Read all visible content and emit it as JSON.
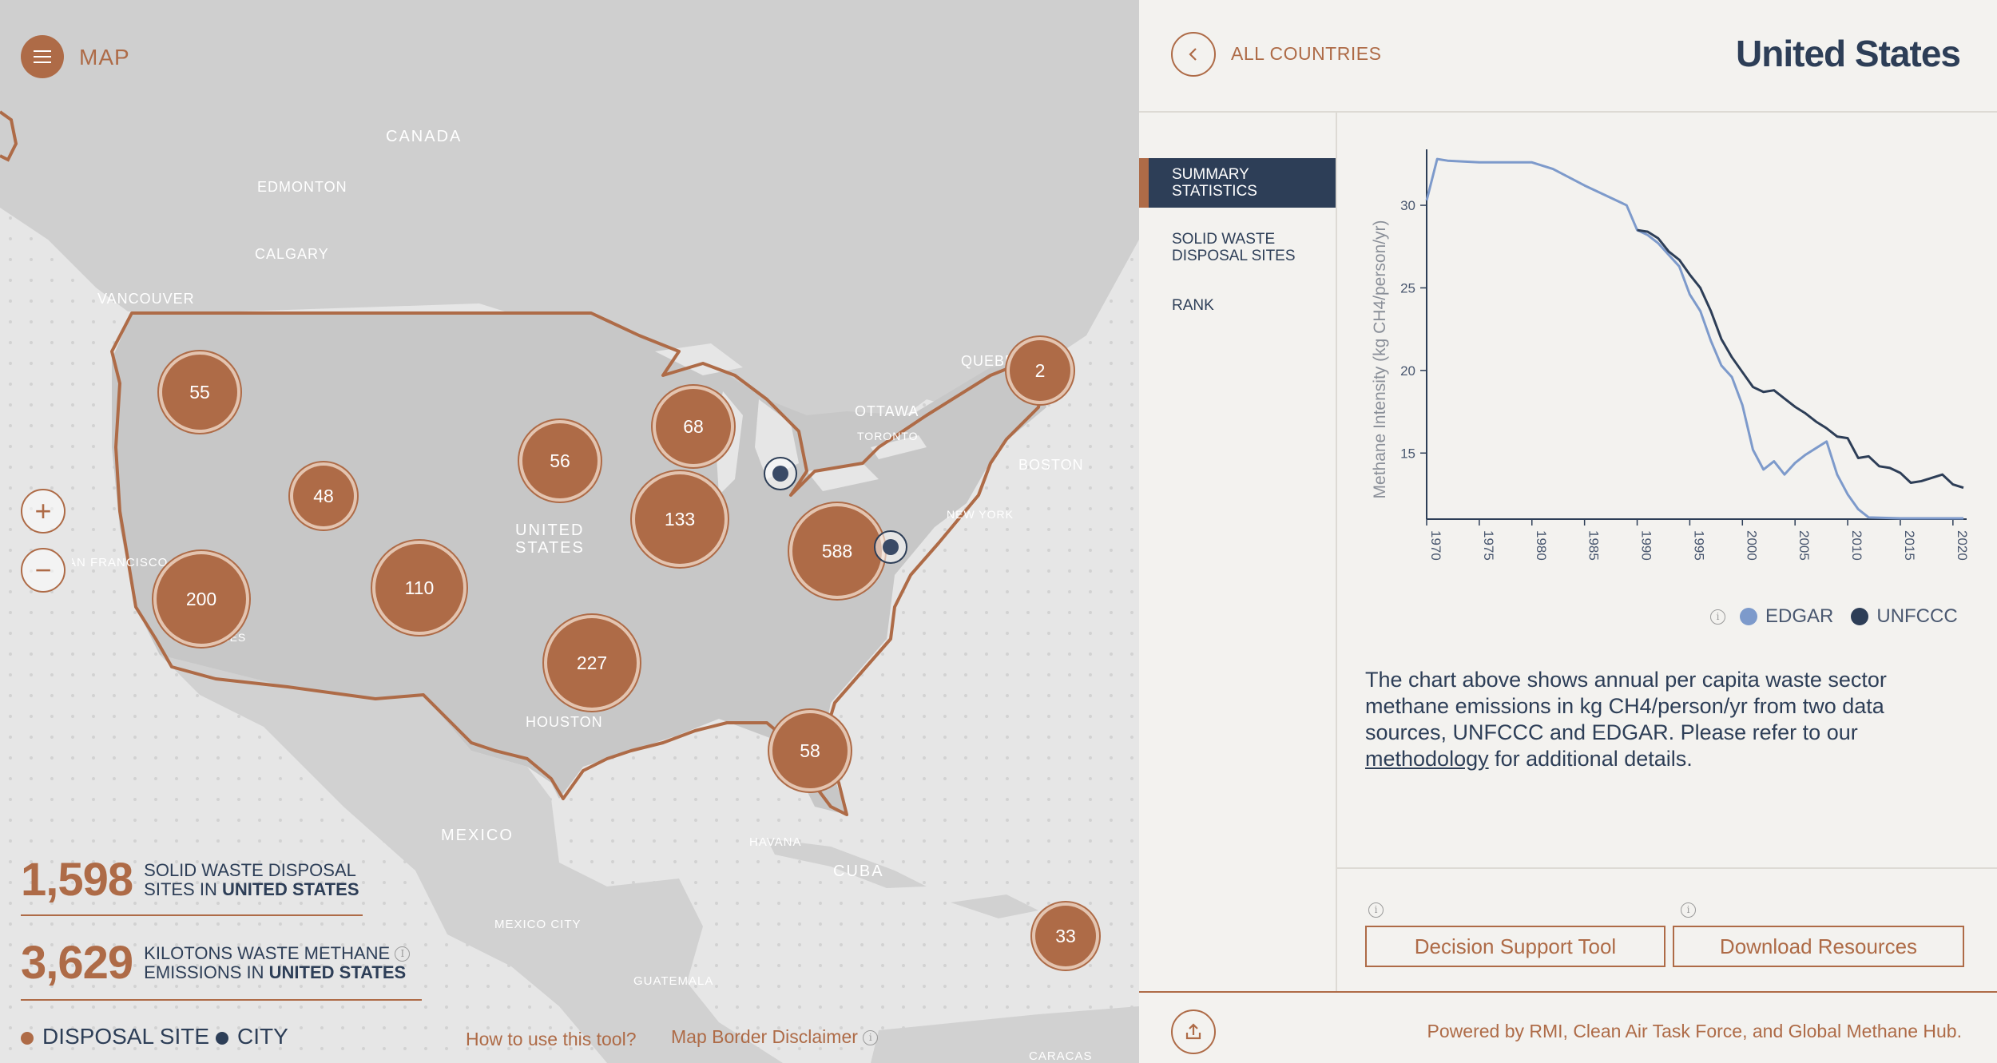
{
  "map": {
    "title": "MAP",
    "labels": {
      "canada": "CANADA",
      "edmonton": "EDMONTON",
      "calgary": "CALGARY",
      "vancouver": "VANCOUVER",
      "quebec": "QUEBEC",
      "ottawa": "OTTAWA",
      "toronto": "TORONTO",
      "boston": "BOSTON",
      "new_york": "NEW YORK",
      "united_states": "UNITED STATES",
      "san_francisco": "SAN FRANCISCO",
      "los_angeles": "LOS ANGELES",
      "houston": "HOUSTON",
      "mexico": "MEXICO",
      "mexico_city": "MEXICO CITY",
      "havana": "HAVANA",
      "cuba": "CUBA",
      "guatemala": "GUATEMALA",
      "caracas": "CARACAS"
    },
    "clusters": [
      "55",
      "48",
      "200",
      "110",
      "56",
      "68",
      "133",
      "227",
      "588",
      "58",
      "2",
      "33"
    ],
    "zoom_in": "+",
    "zoom_out": "−"
  },
  "stats": {
    "sites_value": "1,598",
    "sites_label_1": "SOLID WASTE DISPOSAL",
    "sites_label_2": "SITES IN",
    "sites_country": "UNITED STATES",
    "emissions_value": "3,629",
    "emissions_label_1": "KILOTONS WASTE METHANE",
    "emissions_label_2": "EMISSIONS IN",
    "emissions_country": "UNITED STATES"
  },
  "legend": {
    "disposal_site": "DISPOSAL SITE",
    "city": "CITY"
  },
  "footer": {
    "how_to": "How to use this tool?",
    "disclaimer": "Map Border Disclaimer"
  },
  "colors": {
    "accent": "#ae6b47",
    "navy": "#2d3e57",
    "edgar": "#7d9acb",
    "unfccc": "#2d3e57"
  },
  "panel": {
    "back_label": "ALL COUNTRIES",
    "country": "United States",
    "nav": [
      "SUMMARY STATISTICS",
      "SOLID WASTE DISPOSAL SITES",
      "RANK"
    ],
    "description_pre": "The chart above shows annual per capita waste sector methane emissions in kg CH4/person/yr from two data sources, UNFCCC and EDGAR. Please refer to our ",
    "description_link": "methodology",
    "description_post": " for additional details.",
    "buttons": {
      "decision": "Decision Support Tool",
      "download": "Download Resources"
    },
    "powered_by": "Powered by RMI, Clean Air Task Force, and Global Methane Hub."
  },
  "chart_data": {
    "type": "line",
    "xlabel": "",
    "ylabel": "Methane Intensity (kg CH4/person/yr)",
    "xlim": [
      1970,
      2021
    ],
    "ylim": [
      11,
      33
    ],
    "xticks": [
      "1970",
      "1975",
      "1980",
      "1985",
      "1990",
      "1995",
      "2000",
      "2005",
      "2010",
      "2015",
      "2020"
    ],
    "yticks": [
      "15",
      "20",
      "25",
      "30"
    ],
    "legend": "bottom-right",
    "series": [
      {
        "name": "EDGAR",
        "x": [
          1970,
          1971,
          1972,
          1975,
          1980,
          1982,
          1985,
          1987,
          1989,
          1990,
          1991,
          1992,
          1993,
          1994,
          1995,
          1996,
          1997,
          1998,
          1999,
          2000,
          2001,
          2002,
          2003,
          2004,
          2005,
          2006,
          2007,
          2008,
          2009,
          2010,
          2011,
          2012,
          2015,
          2020,
          2021
        ],
        "values": [
          30.3,
          32.8,
          32.7,
          32.6,
          32.6,
          32.2,
          31.2,
          30.6,
          30.0,
          28.5,
          28.2,
          27.7,
          27.0,
          26.3,
          24.6,
          23.6,
          21.8,
          20.3,
          19.6,
          17.9,
          15.2,
          14.0,
          14.5,
          13.7,
          14.4,
          14.9,
          15.3,
          15.7,
          13.7,
          12.5,
          11.6,
          11.1,
          11.05,
          11.05,
          11.05
        ]
      },
      {
        "name": "UNFCCC",
        "x": [
          1990,
          1991,
          1992,
          1993,
          1994,
          1995,
          1996,
          1997,
          1998,
          1999,
          2000,
          2001,
          2002,
          2003,
          2004,
          2005,
          2006,
          2007,
          2008,
          2009,
          2010,
          2011,
          2012,
          2013,
          2014,
          2015,
          2016,
          2017,
          2018,
          2019,
          2020,
          2021
        ],
        "values": [
          28.5,
          28.4,
          28.0,
          27.2,
          26.7,
          25.8,
          25.0,
          23.6,
          21.9,
          20.8,
          19.9,
          19.0,
          18.7,
          18.8,
          18.3,
          17.8,
          17.4,
          16.9,
          16.5,
          16.0,
          15.9,
          14.7,
          14.8,
          14.2,
          14.1,
          13.8,
          13.2,
          13.3,
          13.5,
          13.7,
          13.1,
          12.9
        ]
      }
    ]
  }
}
